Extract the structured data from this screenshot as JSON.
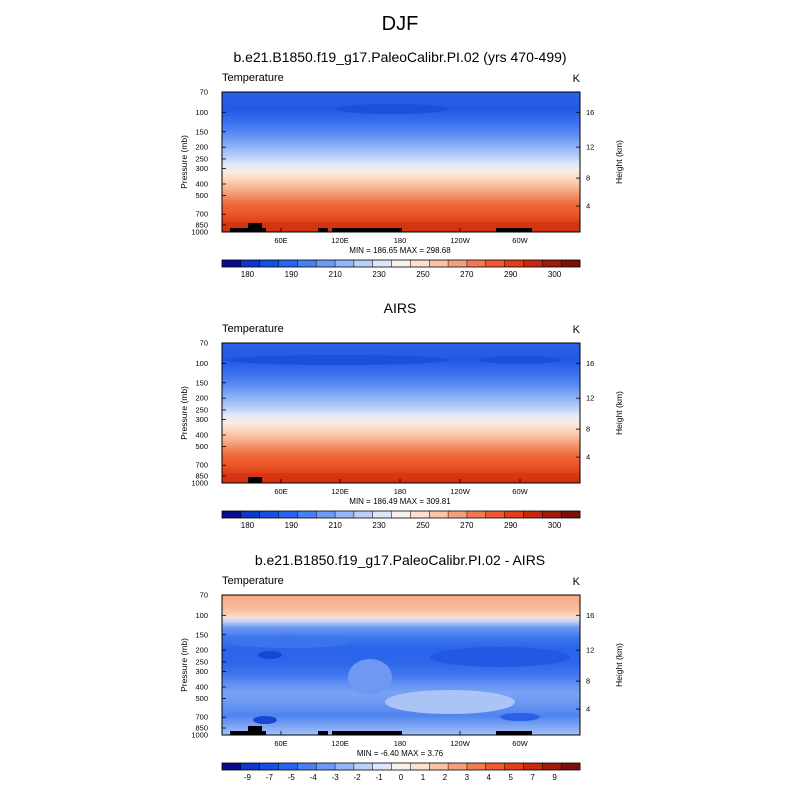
{
  "figure_title": "DJF",
  "chart_data": [
    {
      "type": "heatmap",
      "title": "b.e21.B1850.f19_g17.PaleoCalibr.PI.02 (yrs 470-499)",
      "left_label": "Temperature",
      "units": "K",
      "ylabel": "Pressure (mb)",
      "ylabel_right": "Height (km)",
      "x_ticks": [
        "60E",
        "120E",
        "180",
        "120W",
        "60W"
      ],
      "y_ticks": [
        "70",
        "100",
        "150",
        "200",
        "250",
        "300",
        "400",
        "500",
        "700",
        "850",
        "1000"
      ],
      "y_ticks_right": [
        "16",
        "12",
        "8",
        "4"
      ],
      "min_max": "MIN = 186.65   MAX = 298.68",
      "colorbar_labels": [
        "180",
        "190",
        "210",
        "230",
        "250",
        "270",
        "290",
        "300"
      ],
      "colorbar_colors": [
        "#0a0a8f",
        "#0f37c8",
        "#1450e6",
        "#2864f0",
        "#4a7ef5",
        "#6e9af7",
        "#94b6f8",
        "#bad0f9",
        "#dce6f9",
        "#f7f2ee",
        "#fde0cf",
        "#fbc4a6",
        "#f6a07a",
        "#f27a52",
        "#ee5a2e",
        "#e43d17",
        "#c8280e",
        "#a01c0a",
        "#7a0f0c"
      ]
    },
    {
      "type": "heatmap",
      "title": "AIRS",
      "left_label": "Temperature",
      "units": "K",
      "ylabel": "Pressure (mb)",
      "ylabel_right": "Height (km)",
      "x_ticks": [
        "60E",
        "120E",
        "180",
        "120W",
        "60W"
      ],
      "y_ticks": [
        "70",
        "100",
        "150",
        "200",
        "250",
        "300",
        "400",
        "500",
        "700",
        "850",
        "1000"
      ],
      "y_ticks_right": [
        "16",
        "12",
        "8",
        "4"
      ],
      "min_max": "MIN = 186.49   MAX = 309.81",
      "colorbar_labels": [
        "180",
        "190",
        "210",
        "230",
        "250",
        "270",
        "290",
        "300"
      ],
      "colorbar_colors": [
        "#0a0a8f",
        "#0f37c8",
        "#1450e6",
        "#2864f0",
        "#4a7ef5",
        "#6e9af7",
        "#94b6f8",
        "#bad0f9",
        "#dce6f9",
        "#f7f2ee",
        "#fde0cf",
        "#fbc4a6",
        "#f6a07a",
        "#f27a52",
        "#ee5a2e",
        "#e43d17",
        "#c8280e",
        "#a01c0a",
        "#7a0f0c"
      ]
    },
    {
      "type": "heatmap",
      "title": "b.e21.B1850.f19_g17.PaleoCalibr.PI.02 - AIRS",
      "left_label": "Temperature",
      "units": "K",
      "ylabel": "Pressure (mb)",
      "ylabel_right": "Height (km)",
      "x_ticks": [
        "60E",
        "120E",
        "180",
        "120W",
        "60W"
      ],
      "y_ticks": [
        "70",
        "100",
        "150",
        "200",
        "250",
        "300",
        "400",
        "500",
        "700",
        "850",
        "1000"
      ],
      "y_ticks_right": [
        "16",
        "12",
        "8",
        "4"
      ],
      "min_max": "MIN =  -6.40   MAX =   3.76",
      "colorbar_labels": [
        "-9",
        "-7",
        "-5",
        "-4",
        "-3",
        "-2",
        "-1",
        "0",
        "1",
        "2",
        "3",
        "4",
        "5",
        "7",
        "9"
      ],
      "colorbar_colors": [
        "#0a0a8f",
        "#0f37c8",
        "#1450e6",
        "#2864f0",
        "#4a7ef5",
        "#6e9af7",
        "#94b6f8",
        "#bad0f9",
        "#dce6f9",
        "#f7f2ee",
        "#fde0cf",
        "#fbc4a6",
        "#f6a07a",
        "#f27a52",
        "#ee5a2e",
        "#e43d17",
        "#c8280e",
        "#a01c0a",
        "#7a0f0c"
      ]
    }
  ]
}
